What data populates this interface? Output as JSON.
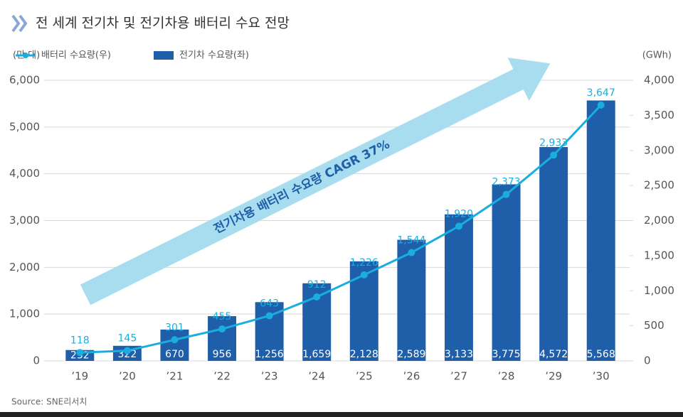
{
  "chart_data": {
    "type": "bar-line",
    "title": "전 세계 전기차 및 전기차용 배터리 수요 전망",
    "y_label": "(만 대)",
    "y2_label": "(GWh)",
    "annotation": "전기차용 배터리 수요량 CAGR 37%",
    "source": "Source: SNE리서치",
    "categories": [
      "’19",
      "’20",
      "’21",
      "’22",
      "’23",
      "’24",
      "’25",
      "’26",
      "’27",
      "’28",
      "’29",
      "’30"
    ],
    "series": [
      {
        "name": "배터리 수요량(우)",
        "type": "line",
        "axis": "y2",
        "color": "#1aaee0",
        "values": [
          118,
          145,
          301,
          455,
          643,
          912,
          1226,
          1544,
          1920,
          2373,
          2933,
          3647
        ],
        "value_labels": [
          "118",
          "145",
          "301",
          "455",
          "643",
          "912",
          "1,226",
          "1,544",
          "1,920",
          "2,373",
          "2,933",
          "3,647"
        ]
      },
      {
        "name": "전기차 수요량(좌)",
        "type": "bar",
        "color": "#1f5ea8",
        "values": [
          232,
          322,
          670,
          956,
          1256,
          1659,
          2128,
          2589,
          3133,
          3775,
          4572,
          5568
        ],
        "value_labels": [
          "232",
          "322",
          "670",
          "956",
          "1,256",
          "1,659",
          "2,128",
          "2,589",
          "3,133",
          "3,775",
          "4,572",
          "5,568"
        ]
      }
    ],
    "ylim": [
      0,
      6000
    ],
    "yticks": [
      0,
      {
        "value": 1000,
        "label": "1,000"
      },
      {
        "value": 2000,
        "label": "2,000"
      },
      {
        "value": 3000,
        "label": "3,000"
      },
      {
        "value": 4000,
        "label": "4,000"
      },
      {
        "value": 5000,
        "label": "5,000"
      },
      {
        "value": 6000,
        "label": "6,000"
      }
    ],
    "y2lim": [
      0,
      4000
    ],
    "y2ticks": [
      0,
      500,
      {
        "value": 1000,
        "label": "1,000"
      },
      {
        "value": 1500,
        "label": "1,500"
      },
      {
        "value": 2000,
        "label": "2,000"
      },
      {
        "value": 2500,
        "label": "2,500"
      },
      {
        "value": 3000,
        "label": "3,000"
      },
      {
        "value": 3500,
        "label": "3,500"
      },
      {
        "value": 4000,
        "label": "4,000"
      }
    ],
    "grid": true
  }
}
